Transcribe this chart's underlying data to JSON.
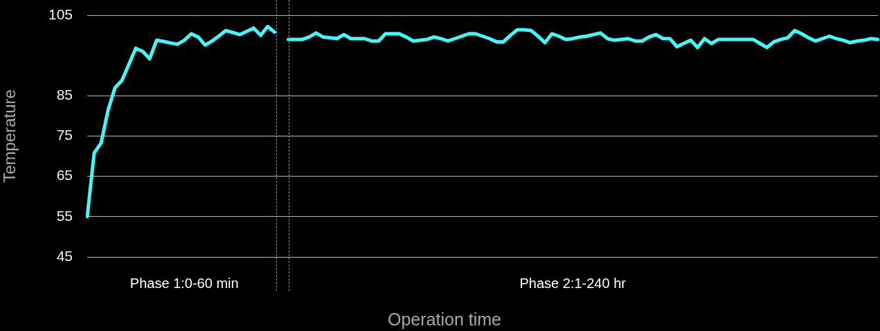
{
  "chart_data": {
    "type": "line",
    "xlabel": "Operation time",
    "ylabel": "Temperature",
    "categories": [
      null,
      null,
      null,
      null,
      null,
      null,
      null,
      null,
      null,
      null,
      null,
      null,
      null,
      null,
      "Phase 1:0-60 min",
      null,
      null,
      null,
      null,
      null,
      null,
      null,
      null,
      null,
      null,
      null,
      null,
      null,
      null,
      null,
      null,
      null,
      null,
      null,
      null,
      null,
      null,
      null,
      null,
      null,
      null,
      null,
      null,
      null,
      null,
      null,
      null,
      null,
      null,
      null,
      null,
      null,
      null,
      null,
      null,
      null,
      null,
      null,
      null,
      null,
      null,
      null,
      null,
      null,
      null,
      null,
      null,
      null,
      null,
      null,
      "Phase 2:1-240 hr",
      null,
      null,
      null,
      null,
      null,
      null,
      null,
      null,
      null,
      null,
      null,
      null,
      null,
      null,
      null,
      null,
      null,
      null,
      null,
      null,
      null,
      null,
      null,
      null,
      null,
      null,
      null,
      null,
      null,
      null,
      null,
      null,
      null,
      null,
      null,
      null,
      null,
      null,
      null,
      null,
      null,
      null,
      null,
      null
    ],
    "values": [
      55,
      70.8,
      73.3,
      81.4,
      87.0,
      88.8,
      92.8,
      96.8,
      96.0,
      94.2,
      98.8,
      98.5,
      98.1,
      97.8,
      98.8,
      100.4,
      99.6,
      97.6,
      98.6,
      99.9,
      101.2,
      100.7,
      100.2,
      101.0,
      101.8,
      100.0,
      102.2,
      100.8,
      null,
      99.0,
      99.0,
      99.0,
      99.6,
      100.6,
      99.6,
      99.4,
      99.2,
      100.2,
      99.2,
      99.2,
      99.2,
      98.6,
      98.6,
      100.4,
      100.4,
      100.4,
      99.6,
      98.6,
      98.8,
      99.0,
      99.6,
      99.2,
      98.6,
      99.2,
      99.8,
      100.4,
      100.4,
      99.8,
      99.2,
      98.4,
      98.4,
      100.0,
      101.4,
      101.4,
      101.2,
      99.8,
      98.2,
      100.4,
      99.8,
      99.0,
      99.2,
      99.6,
      99.8,
      100.2,
      100.6,
      99.2,
      98.8,
      99.0,
      99.2,
      98.6,
      98.6,
      99.6,
      100.2,
      99.2,
      99.2,
      97.2,
      98.0,
      98.8,
      97.0,
      99.2,
      98.0,
      99.0,
      99.0,
      99.0,
      99.0,
      99.0,
      99.0,
      98.0,
      97.0,
      98.4,
      99.0,
      99.4,
      101.2,
      100.4,
      99.4,
      98.6,
      99.2,
      99.8,
      99.2,
      98.8,
      98.2,
      98.6,
      98.8,
      99.2,
      99.0
    ],
    "color": "#40f8f8",
    "ylim": [
      45,
      105
    ],
    "yticks": [
      45,
      55,
      65,
      75,
      85,
      105
    ],
    "grid": "y"
  }
}
